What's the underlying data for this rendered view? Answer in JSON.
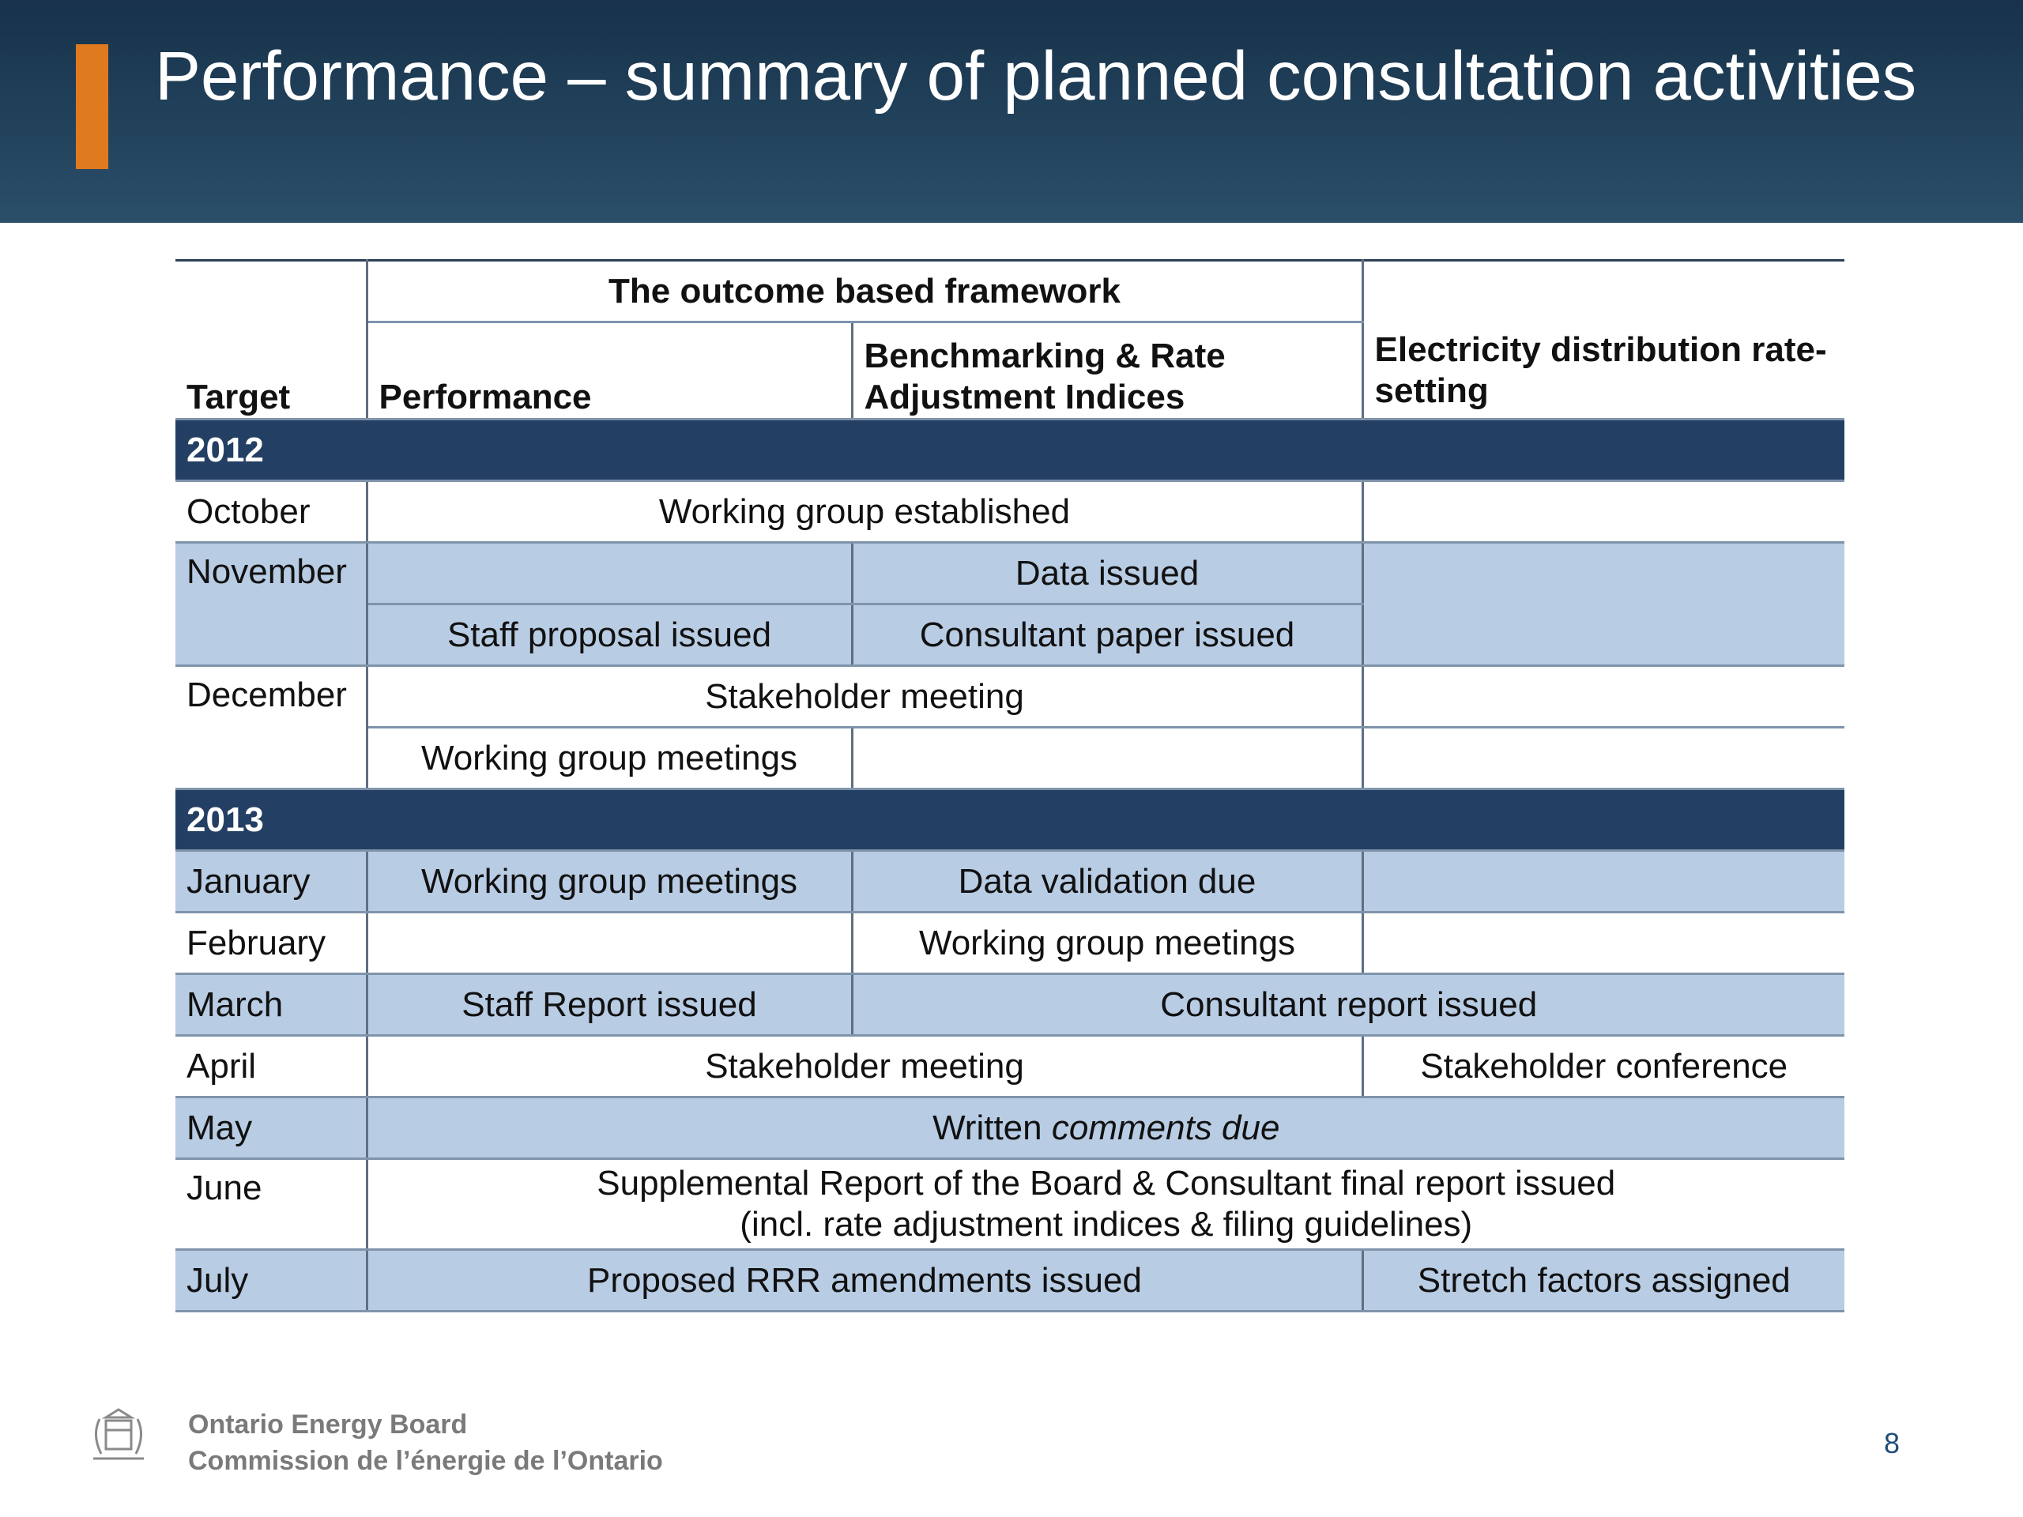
{
  "slide": {
    "title": "Performance – summary of planned consultation activities",
    "page_number": "8"
  },
  "table": {
    "header": {
      "target": "Target",
      "framework": "The outcome based framework",
      "performance": "Performance",
      "benchmarking": "Benchmarking & Rate Adjustment Indices",
      "rate_setting": "Electricity distribution rate-setting"
    },
    "year_2012": "2012",
    "year_2013": "2013",
    "rows": {
      "october": {
        "month": "October",
        "c1": "Working group established"
      },
      "november": {
        "month": "November",
        "data": "Data issued",
        "staff": "Staff proposal issued",
        "consultant": "Consultant paper issued"
      },
      "december": {
        "month": "December",
        "meeting": "Stakeholder meeting",
        "wg": "Working group meetings"
      },
      "january": {
        "month": "January",
        "perf": "Working group meetings",
        "bench": "Data validation due"
      },
      "february": {
        "month": "February",
        "bench": "Working group meetings"
      },
      "march": {
        "month": "March",
        "perf": "Staff Report issued",
        "bench": "Consultant report issued"
      },
      "april": {
        "month": "April",
        "framework": "Stakeholder meeting",
        "rate": "Stakeholder conference"
      },
      "may": {
        "month": "May",
        "prefix": "Written",
        "italic": "comments due"
      },
      "june": {
        "month": "June",
        "line1": "Supplemental Report of the Board & Consultant final report issued",
        "line2": "(incl. rate adjustment indices & filing guidelines)"
      },
      "july": {
        "month": "July",
        "framework": "Proposed RRR amendments issued",
        "rate": "Stretch factors assigned"
      }
    }
  },
  "footer": {
    "org_en": "Ontario Energy Board",
    "org_fr": "Commission de l’énergie de l’Ontario",
    "crest_icon": "ontario-crest-icon"
  },
  "colors": {
    "header_bg": "#23435d",
    "accent": "#e07a1f",
    "year_band": "#233f63",
    "row_blue": "#b8cce4",
    "page_number": "#1f4e79"
  }
}
